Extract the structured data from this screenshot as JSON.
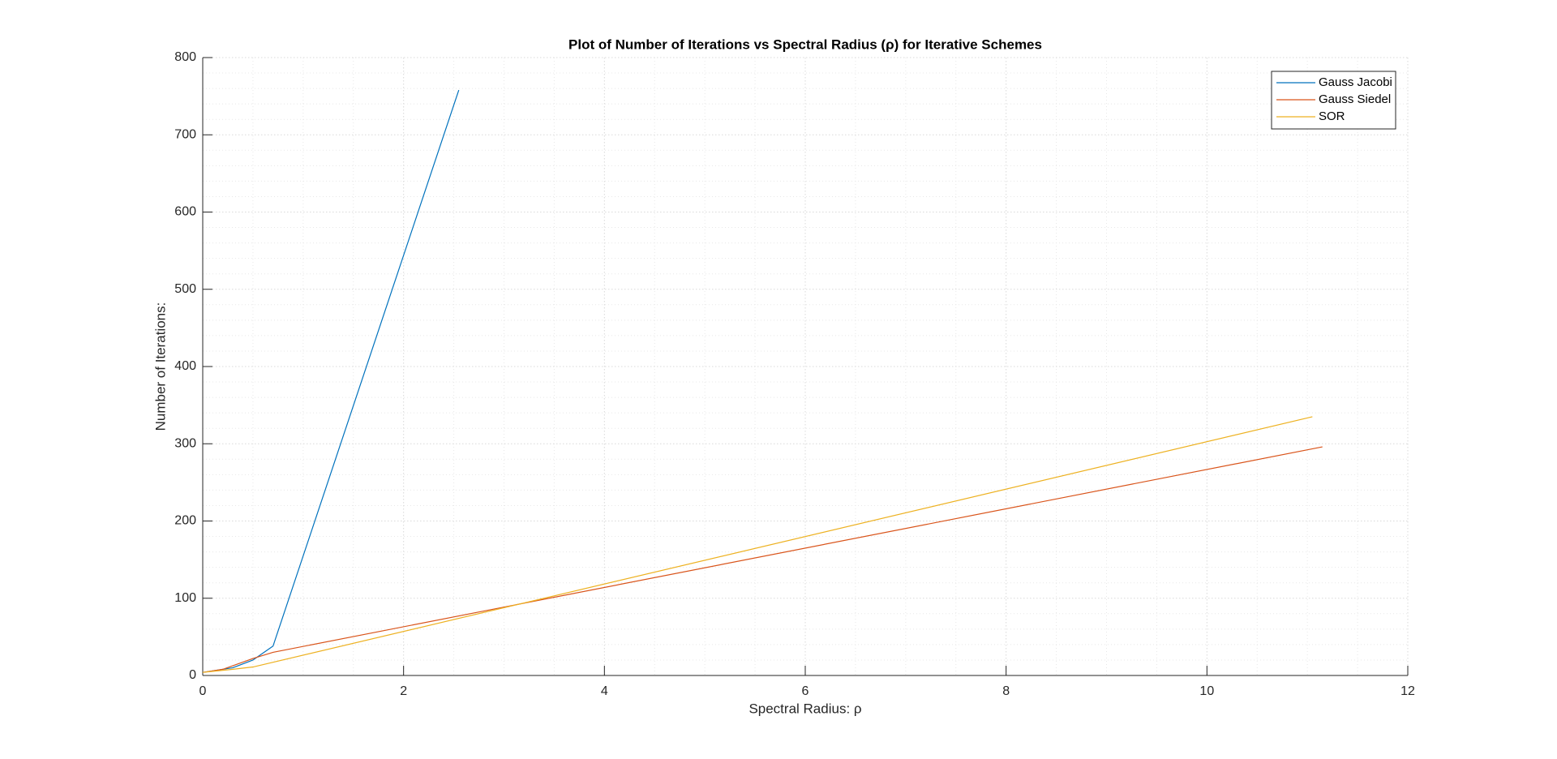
{
  "chart_data": {
    "type": "line",
    "title": "Plot of Number of Iterations vs Spectral Radius (ρ) for Iterative Schemes",
    "x_label": "Spectral Radius: ρ",
    "y_label": "Number of Iterations:",
    "series": [
      {
        "name": "Gauss Jacobi",
        "color": "#0072BD",
        "x": [
          0,
          0.3,
          0.5,
          0.7,
          2.55
        ],
        "values": [
          4,
          10,
          20,
          38,
          758
        ]
      },
      {
        "name": "Gauss Siedel",
        "color": "#D95319",
        "x": [
          0,
          0.2,
          0.5,
          0.7,
          11.15
        ],
        "values": [
          4,
          8,
          22,
          30,
          296
        ]
      },
      {
        "name": "SOR",
        "color": "#EDB120",
        "x": [
          0,
          0.3,
          0.5,
          11.05
        ],
        "values": [
          4,
          8,
          11,
          335
        ]
      }
    ],
    "xlim": [
      0,
      12
    ],
    "xticks": [
      0,
      2,
      4,
      6,
      8,
      10,
      12
    ],
    "ylim": [
      0,
      800
    ],
    "yticks": [
      0,
      100,
      200,
      300,
      400,
      500,
      600,
      700,
      800
    ],
    "grid": true,
    "minor_grid": true,
    "legend_position": "top-right"
  }
}
